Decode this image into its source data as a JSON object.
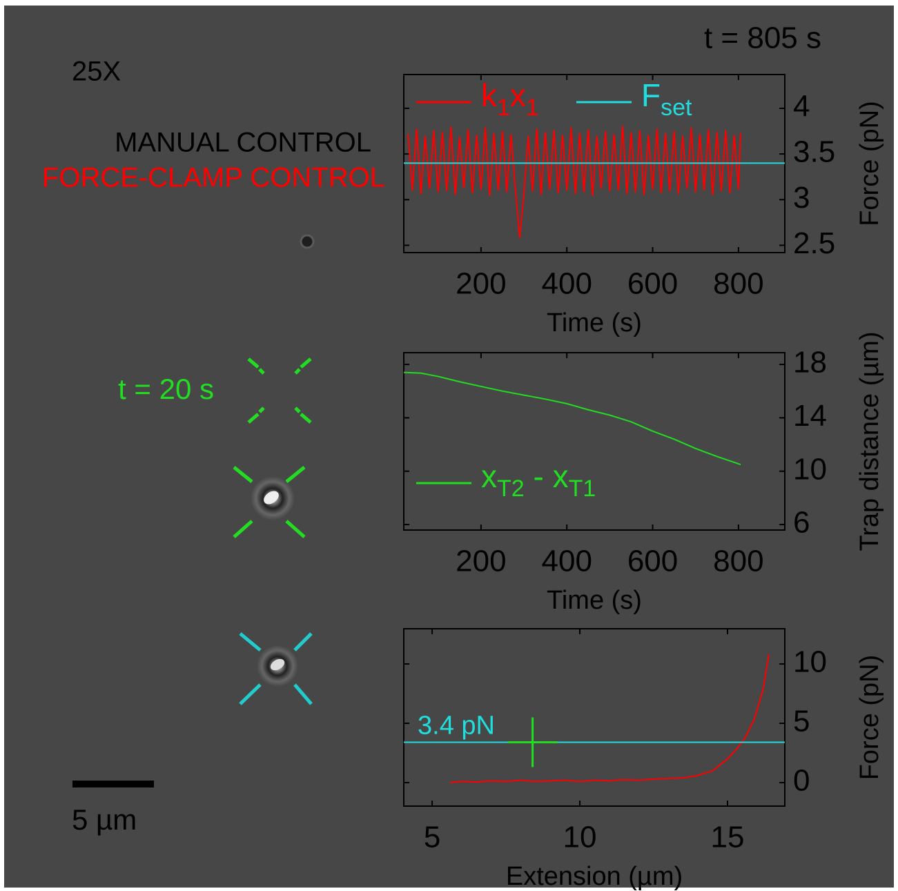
{
  "overlay": {
    "time_total": "t = 805 s",
    "magnification": "25X",
    "manual": "MANUAL CONTROL",
    "force_clamp": "FORCE-CLAMP CONTROL",
    "time_marker": "t = 20 s",
    "scale_bar": "5 µm"
  },
  "chart_data": [
    {
      "type": "line",
      "xlabel": "Time (s)",
      "ylabel": "Force (pN)",
      "x": [
        30,
        40,
        50,
        60,
        70,
        80,
        90,
        100,
        110,
        120,
        130,
        140,
        150,
        160,
        170,
        180,
        190,
        200,
        210,
        220,
        230,
        240,
        250,
        260,
        270,
        280,
        290,
        300,
        310,
        320,
        330,
        340,
        350,
        360,
        370,
        380,
        390,
        400,
        410,
        420,
        430,
        440,
        450,
        460,
        470,
        480,
        490,
        500,
        510,
        520,
        530,
        540,
        550,
        560,
        570,
        580,
        590,
        600,
        610,
        620,
        630,
        640,
        650,
        660,
        670,
        680,
        690,
        700,
        710,
        720,
        730,
        740,
        750,
        760,
        770,
        780,
        790,
        800,
        805
      ],
      "series": [
        {
          "name": [
            "k",
            "1",
            "x",
            "1"
          ],
          "color": "#ff0000",
          "values": [
            3.72,
            3.1,
            3.78,
            3.06,
            3.7,
            3.12,
            3.76,
            3.08,
            3.74,
            3.09,
            3.8,
            3.05,
            3.69,
            3.13,
            3.77,
            3.07,
            3.71,
            3.11,
            3.79,
            3.04,
            3.73,
            3.1,
            3.75,
            3.08,
            3.72,
            3.12,
            2.58,
            3.06,
            3.7,
            3.09,
            3.78,
            3.05,
            3.74,
            3.11,
            3.76,
            3.07,
            3.71,
            3.1,
            3.79,
            3.06,
            3.73,
            3.08,
            3.77,
            3.04,
            3.7,
            3.12,
            3.75,
            3.09,
            3.72,
            3.1,
            3.81,
            3.06,
            3.74,
            3.08,
            3.76,
            3.05,
            3.71,
            3.11,
            3.78,
            3.07,
            3.73,
            3.09,
            3.75,
            3.06,
            3.7,
            3.12,
            3.79,
            3.08,
            3.72,
            3.1,
            3.77,
            3.05,
            3.74,
            3.09,
            3.76,
            3.07,
            3.71,
            3.11,
            3.73
          ]
        }
      ],
      "hline": {
        "name": [
          "F",
          "set"
        ],
        "value": 3.4,
        "color": "#22dddd"
      },
      "legend": "upper left",
      "xlim": [
        20,
        908
      ],
      "xticks": [
        200,
        400,
        600,
        800
      ],
      "ylim": [
        2.42,
        4.37
      ],
      "yticks": [
        2.5,
        3,
        3.5,
        4
      ]
    },
    {
      "type": "line",
      "xlabel": "Time (s)",
      "ylabel": "Trap distance (µm)",
      "x": [
        20,
        60,
        100,
        150,
        200,
        250,
        300,
        350,
        400,
        450,
        500,
        550,
        600,
        650,
        700,
        750,
        805
      ],
      "series": [
        {
          "name": [
            "x",
            "T2",
            " - x",
            "T1"
          ],
          "color": "#22dd22",
          "values": [
            17.4,
            17.35,
            17.1,
            16.7,
            16.35,
            16.0,
            15.7,
            15.4,
            15.06,
            14.6,
            14.2,
            13.7,
            13.0,
            12.4,
            11.7,
            11.1,
            10.5
          ]
        }
      ],
      "legend": "lower left",
      "xlim": [
        20,
        908
      ],
      "xticks": [
        200,
        400,
        600,
        800
      ],
      "ylim": [
        5.59,
        18.88
      ],
      "yticks": [
        6,
        10,
        14,
        18
      ]
    },
    {
      "type": "line",
      "xlabel": "Extension (µm)",
      "ylabel": "Force (pN)",
      "x": [
        5.6,
        6,
        6.5,
        7,
        7.5,
        8,
        8.5,
        9,
        9.5,
        10,
        10.5,
        11,
        11.5,
        12,
        12.5,
        13,
        13.5,
        14,
        14.5,
        15,
        15.3,
        15.6,
        15.9,
        16.2,
        16.4
      ],
      "series": [
        {
          "color": "#ff0000",
          "values": [
            0,
            0.1,
            0.05,
            0.15,
            0.1,
            0.2,
            0.1,
            0.15,
            0.2,
            0.1,
            0.2,
            0.15,
            0.25,
            0.2,
            0.3,
            0.35,
            0.4,
            0.6,
            1.0,
            2.0,
            2.8,
            3.8,
            5.3,
            7.8,
            10.8
          ]
        }
      ],
      "hline": {
        "label": "3.4 pN",
        "value": 3.4,
        "color": "#22dddd"
      },
      "marker": {
        "x": 8.4,
        "y": 3.4,
        "color": "#22dd22"
      },
      "xlim": [
        4.04,
        16.94
      ],
      "xticks": [
        5,
        10,
        15
      ],
      "ylim": [
        -1.98,
        12.97
      ],
      "yticks": [
        0,
        5,
        10
      ]
    }
  ]
}
